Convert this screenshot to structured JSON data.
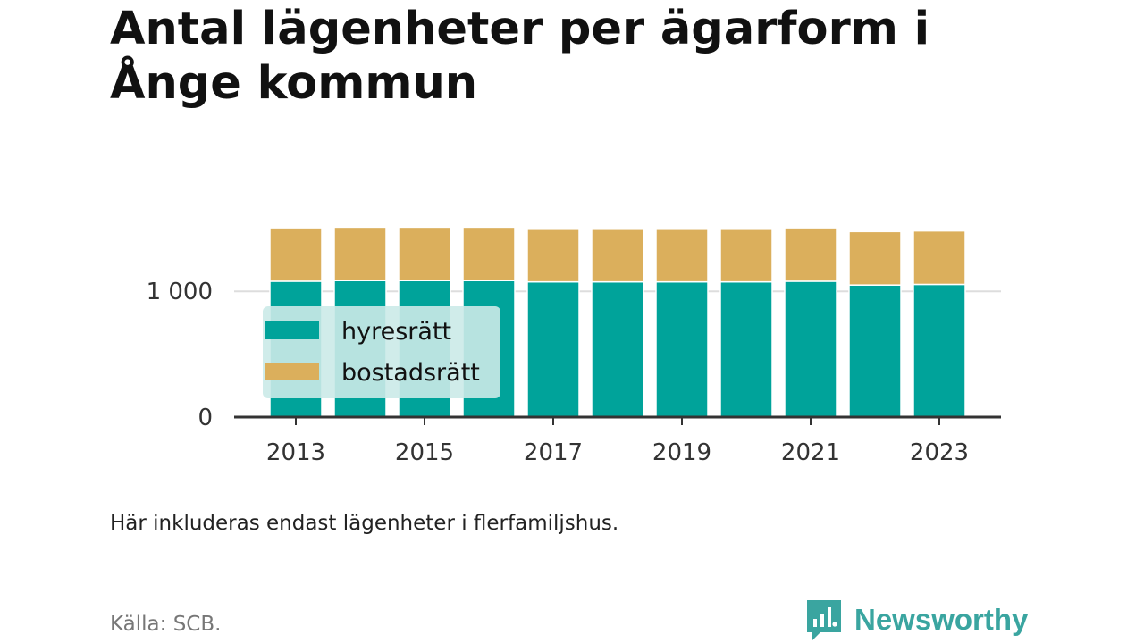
{
  "title": "Antal lägenheter per ägarform i Ånge kommun",
  "caption": "Här inkluderas endast lägenheter i flerfamiljshus.",
  "source": "Källa: SCB.",
  "brand": {
    "name": "Newsworthy",
    "icon": "newsworthy-logo-icon",
    "color": "#3aa5a0"
  },
  "colors": {
    "hyresratt": "#00a39a",
    "bostadsratt": "#dbaf5c",
    "grid": "#dddddd",
    "axis": "#333333",
    "legend_bg": "#cbeae8"
  },
  "chart_data": {
    "type": "bar",
    "stacked": true,
    "categories": [
      "2013",
      "2014",
      "2015",
      "2016",
      "2017",
      "2018",
      "2019",
      "2020",
      "2021",
      "2022",
      "2023"
    ],
    "x_tick_labels": [
      "2013",
      "2015",
      "2017",
      "2019",
      "2021",
      "2023"
    ],
    "series": [
      {
        "name": "hyresrätt",
        "color": "#00a39a",
        "values": [
          1080,
          1085,
          1085,
          1085,
          1075,
          1075,
          1075,
          1075,
          1080,
          1050,
          1055
        ]
      },
      {
        "name": "bostadsrätt",
        "color": "#dbaf5c",
        "values": [
          425,
          425,
          425,
          425,
          425,
          425,
          425,
          425,
          425,
          425,
          425
        ]
      }
    ],
    "y_ticks": [
      0,
      1000
    ],
    "y_tick_labels": [
      "0",
      "1 000"
    ],
    "ylim": [
      0,
      1520
    ],
    "grid": true,
    "legend_position": "inside-left"
  }
}
